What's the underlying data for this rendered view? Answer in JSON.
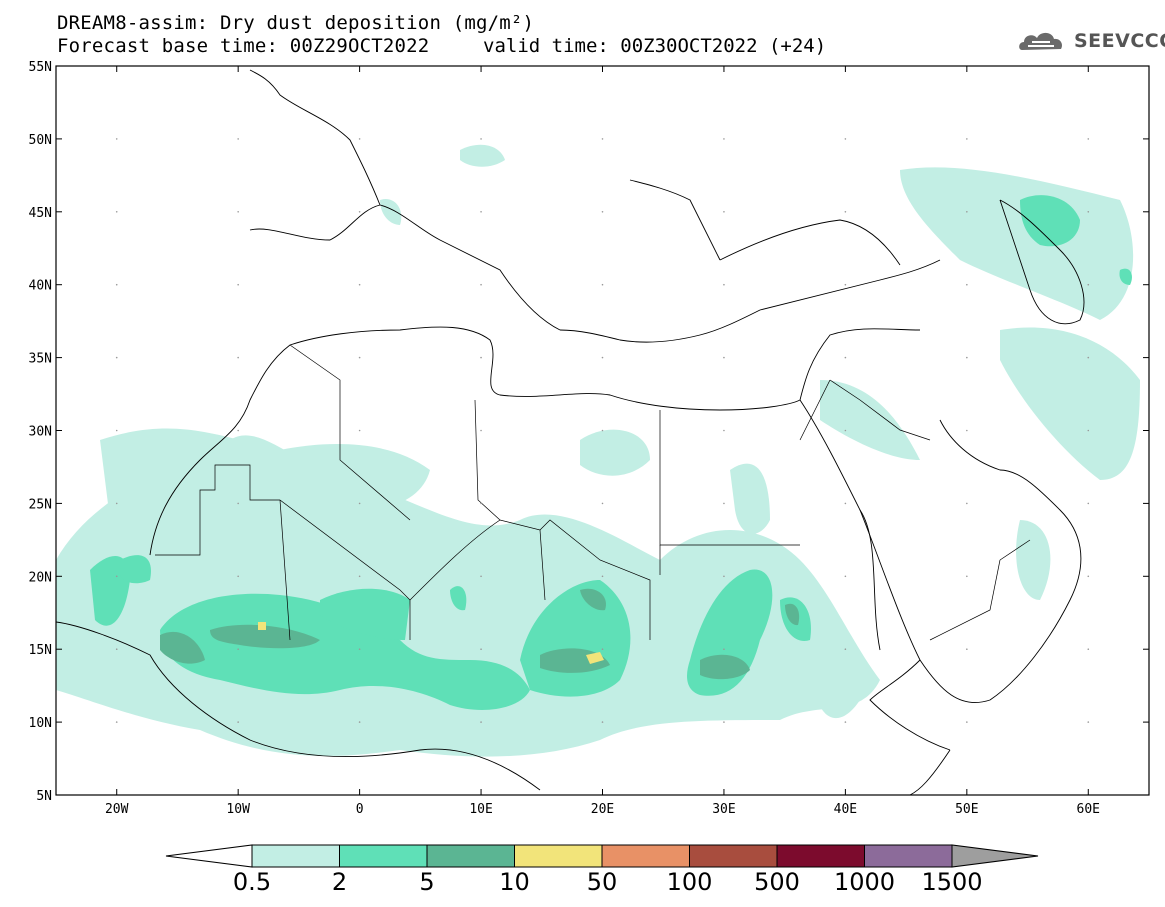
{
  "title": {
    "line1": "DREAM8-assim: Dry dust deposition (mg/m²)",
    "line2": "Forecast base time: 00Z29OCT2022",
    "valid": "valid time: 00Z30OCT2022 (+24)"
  },
  "logo": {
    "text": "SEEVCCC",
    "icon": "cloud-icon"
  },
  "map": {
    "lat_range": [
      5,
      55
    ],
    "lon_range": [
      -25,
      65
    ],
    "lat_ticks": [
      "55N",
      "50N",
      "45N",
      "40N",
      "35N",
      "30N",
      "25N",
      "20N",
      "15N",
      "10N",
      "5N"
    ],
    "lon_ticks": [
      "20W",
      "10W",
      "0",
      "10E",
      "20E",
      "30E",
      "40E",
      "50E",
      "60E"
    ]
  },
  "colorbar": {
    "labels": [
      "0.5",
      "2",
      "5",
      "10",
      "50",
      "100",
      "500",
      "1000",
      "1500"
    ],
    "colors": [
      "#c2eee4",
      "#5fe0b7",
      "#5bb593",
      "#f2e47a",
      "#e89166",
      "#a84d3e",
      "#7c0b2d",
      "#8c6b9a"
    ],
    "under_color": "#ffffff",
    "over_color": "#9e9e9e"
  }
}
